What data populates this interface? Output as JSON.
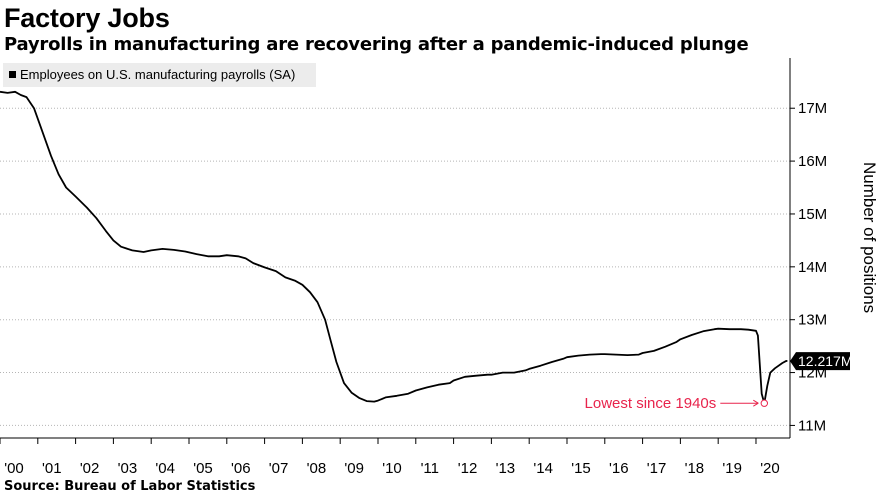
{
  "chart_data": {
    "type": "line",
    "title": "Factory Jobs",
    "subtitle": "Payrolls in manufacturing are recovering after a pandemic-induced plunge",
    "legend": "Employees on U.S. manufacturing payrolls (SA)",
    "ylabel": "Number of positions",
    "source": "Source: Bureau of Labor Statistics",
    "y_ticks": [
      {
        "value": 11,
        "label": "11M"
      },
      {
        "value": 12,
        "label": "12M"
      },
      {
        "value": 13,
        "label": "13M"
      },
      {
        "value": 14,
        "label": "14M"
      },
      {
        "value": 15,
        "label": "15M"
      },
      {
        "value": 16,
        "label": "16M"
      },
      {
        "value": 17,
        "label": "17M"
      }
    ],
    "x_ticks": [
      {
        "value": 2000,
        "label": "'00"
      },
      {
        "value": 2001,
        "label": "'01"
      },
      {
        "value": 2002,
        "label": "'02"
      },
      {
        "value": 2003,
        "label": "'03"
      },
      {
        "value": 2004,
        "label": "'04"
      },
      {
        "value": 2005,
        "label": "'05"
      },
      {
        "value": 2006,
        "label": "'06"
      },
      {
        "value": 2007,
        "label": "'07"
      },
      {
        "value": 2008,
        "label": "'08"
      },
      {
        "value": 2009,
        "label": "'09"
      },
      {
        "value": 2010,
        "label": "'10"
      },
      {
        "value": 2011,
        "label": "'11"
      },
      {
        "value": 2012,
        "label": "'12"
      },
      {
        "value": 2013,
        "label": "'13"
      },
      {
        "value": 2014,
        "label": "'14"
      },
      {
        "value": 2015,
        "label": "'15"
      },
      {
        "value": 2016,
        "label": "'16"
      },
      {
        "value": 2017,
        "label": "'17"
      },
      {
        "value": 2018,
        "label": "'18"
      },
      {
        "value": 2019,
        "label": "'19"
      },
      {
        "value": 2020,
        "label": "'20"
      }
    ],
    "xlim": [
      2000,
      2020.9
    ],
    "ylim": [
      10.8,
      17.95
    ],
    "grid": true,
    "series": [
      {
        "name": "Employees on U.S. manufacturing payrolls (SA)",
        "unit": "millions",
        "points": [
          [
            2000.0,
            17.31
          ],
          [
            2000.2,
            17.29
          ],
          [
            2000.4,
            17.31
          ],
          [
            2000.55,
            17.25
          ],
          [
            2000.7,
            17.21
          ],
          [
            2000.9,
            17.0
          ],
          [
            2001.1,
            16.6
          ],
          [
            2001.35,
            16.1
          ],
          [
            2001.55,
            15.75
          ],
          [
            2001.75,
            15.5
          ],
          [
            2002.0,
            15.33
          ],
          [
            2002.3,
            15.12
          ],
          [
            2002.55,
            14.92
          ],
          [
            2002.8,
            14.68
          ],
          [
            2003.0,
            14.5
          ],
          [
            2003.2,
            14.38
          ],
          [
            2003.5,
            14.31
          ],
          [
            2003.8,
            14.28
          ],
          [
            2004.0,
            14.31
          ],
          [
            2004.3,
            14.34
          ],
          [
            2004.6,
            14.32
          ],
          [
            2004.9,
            14.29
          ],
          [
            2005.2,
            14.24
          ],
          [
            2005.5,
            14.2
          ],
          [
            2005.8,
            14.2
          ],
          [
            2006.0,
            14.22
          ],
          [
            2006.3,
            14.2
          ],
          [
            2006.5,
            14.16
          ],
          [
            2006.7,
            14.07
          ],
          [
            2007.0,
            13.99
          ],
          [
            2007.3,
            13.92
          ],
          [
            2007.55,
            13.8
          ],
          [
            2007.8,
            13.74
          ],
          [
            2008.0,
            13.66
          ],
          [
            2008.2,
            13.52
          ],
          [
            2008.4,
            13.33
          ],
          [
            2008.6,
            13.0
          ],
          [
            2008.75,
            12.6
          ],
          [
            2008.9,
            12.2
          ],
          [
            2009.1,
            11.8
          ],
          [
            2009.3,
            11.62
          ],
          [
            2009.5,
            11.52
          ],
          [
            2009.7,
            11.46
          ],
          [
            2009.9,
            11.45
          ],
          [
            2010.0,
            11.47
          ],
          [
            2010.2,
            11.53
          ],
          [
            2010.5,
            11.56
          ],
          [
            2010.8,
            11.6
          ],
          [
            2011.0,
            11.66
          ],
          [
            2011.3,
            11.72
          ],
          [
            2011.6,
            11.77
          ],
          [
            2011.9,
            11.8
          ],
          [
            2012.0,
            11.85
          ],
          [
            2012.3,
            11.92
          ],
          [
            2012.6,
            11.94
          ],
          [
            2012.9,
            11.96
          ],
          [
            2013.0,
            11.96
          ],
          [
            2013.3,
            12.0
          ],
          [
            2013.6,
            12.0
          ],
          [
            2013.9,
            12.04
          ],
          [
            2014.0,
            12.07
          ],
          [
            2014.3,
            12.13
          ],
          [
            2014.6,
            12.2
          ],
          [
            2014.9,
            12.26
          ],
          [
            2015.0,
            12.29
          ],
          [
            2015.3,
            12.32
          ],
          [
            2015.6,
            12.34
          ],
          [
            2015.9,
            12.35
          ],
          [
            2016.0,
            12.35
          ],
          [
            2016.3,
            12.34
          ],
          [
            2016.6,
            12.33
          ],
          [
            2016.9,
            12.34
          ],
          [
            2017.0,
            12.37
          ],
          [
            2017.3,
            12.41
          ],
          [
            2017.6,
            12.49
          ],
          [
            2017.9,
            12.58
          ],
          [
            2018.0,
            12.63
          ],
          [
            2018.3,
            12.71
          ],
          [
            2018.6,
            12.78
          ],
          [
            2018.9,
            12.82
          ],
          [
            2019.0,
            12.83
          ],
          [
            2019.3,
            12.82
          ],
          [
            2019.6,
            12.82
          ],
          [
            2019.8,
            12.81
          ],
          [
            2020.0,
            12.79
          ],
          [
            2020.05,
            12.7
          ],
          [
            2020.15,
            11.6
          ],
          [
            2020.22,
            11.42
          ],
          [
            2020.3,
            11.75
          ],
          [
            2020.38,
            12.0
          ],
          [
            2020.5,
            12.08
          ],
          [
            2020.7,
            12.18
          ],
          [
            2020.8,
            12.22
          ],
          [
            2020.83,
            12.217
          ]
        ]
      }
    ],
    "annotations": [
      {
        "text": "Lowest since 1940s",
        "x": 2020.22,
        "y": 11.42,
        "color": "#e8244c"
      }
    ],
    "last_value_label": "12.217M",
    "last_value": 12.217
  }
}
